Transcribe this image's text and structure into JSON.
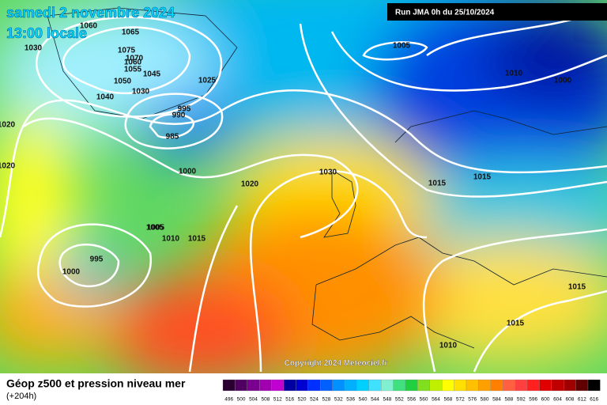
{
  "header": {
    "title": "samedi 2 novembre 2024",
    "subtitle": "13:00 locale",
    "run": "Run JMA 0h du 25/10/2024"
  },
  "map": {
    "isobar_labels": [
      "1065",
      "1060",
      "1030",
      "1075",
      "1070",
      "1060",
      "1055",
      "1045",
      "1050",
      "1040",
      "1030",
      "1025",
      "995",
      "990",
      "985",
      "1020",
      "1020",
      "1000",
      "1030",
      "1020",
      "1015",
      "1005",
      "1010",
      "1015",
      "995",
      "1000",
      "1005",
      "1005",
      "1000",
      "1010",
      "1015",
      "1015",
      "1015",
      "1010"
    ],
    "copyright": "Copyright 2024 Meteociel.fr"
  },
  "footer": {
    "title": "Géop z500 et pression niveau mer",
    "subtitle": "(+204h)"
  },
  "scale": {
    "labels": [
      "496",
      "500",
      "504",
      "508",
      "512",
      "516",
      "520",
      "524",
      "528",
      "532",
      "536",
      "540",
      "544",
      "548",
      "552",
      "556",
      "560",
      "564",
      "568",
      "572",
      "576",
      "580",
      "584",
      "588",
      "592",
      "596",
      "600",
      "604",
      "608",
      "612",
      "616"
    ],
    "colors": [
      "#2a0030",
      "#500060",
      "#7a0090",
      "#a000b0",
      "#c000d0",
      "#0000a0",
      "#0000d0",
      "#0030ff",
      "#0060ff",
      "#0090ff",
      "#00b0ff",
      "#00d0ff",
      "#40e0ff",
      "#80f0d0",
      "#40e080",
      "#20d040",
      "#80e020",
      "#c0f000",
      "#ffff00",
      "#ffe000",
      "#ffc000",
      "#ffa000",
      "#ff8000",
      "#ff6040",
      "#ff4040",
      "#ff2020",
      "#e00000",
      "#c00000",
      "#a00000",
      "#600000",
      "#000000"
    ]
  }
}
